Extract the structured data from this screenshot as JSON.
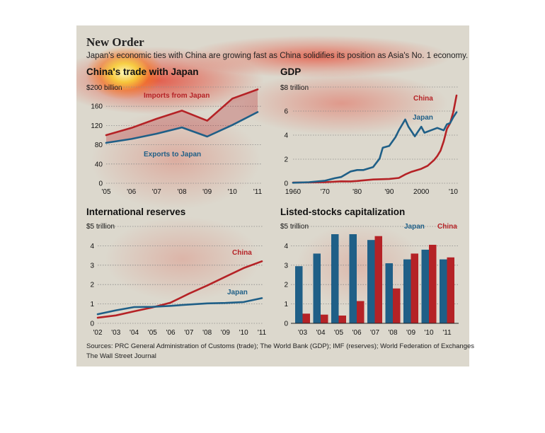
{
  "headline": "New Order",
  "dek": "Japan's economic ties with China are growing fast as China solidifies its position as Asia's No. 1 economy.",
  "sources": "Sources: PRC General Administration of Customs (trade); The World Bank (GDP); IMF (reserves); World Federation of Exchanges",
  "credit": "The Wall Street Journal",
  "colors": {
    "china": "#b52226",
    "japan": "#1f5f87",
    "background": "#dcd8cd",
    "grid": "#8a8a8a"
  },
  "chart_data": [
    {
      "type": "line",
      "title": "China's trade with Japan",
      "unit_label": "$200 billion",
      "x": [
        2005,
        2006,
        2007,
        2008,
        2009,
        2010,
        2011
      ],
      "x_tick_labels": [
        "'05",
        "'06",
        "'07",
        "'08",
        "'09",
        "'10",
        "'11"
      ],
      "y_ticks": [
        0,
        40,
        80,
        120,
        160,
        200
      ],
      "y_tick_labels": [
        "0",
        "40",
        "80",
        "120",
        "160",
        ""
      ],
      "ylim": [
        0,
        200
      ],
      "area_between": true,
      "series": [
        {
          "name": "Imports from Japan",
          "key": "china",
          "values": [
            100,
            115,
            134,
            151,
            130,
            176,
            195
          ]
        },
        {
          "name": "Exports to Japan",
          "key": "japan",
          "values": [
            84,
            92,
            103,
            116,
            97,
            121,
            148
          ]
        }
      ]
    },
    {
      "type": "line",
      "title": "GDP",
      "unit_label": "$8 trillion",
      "xlim": [
        1960,
        2011
      ],
      "x_ticks": [
        1960,
        1970,
        1980,
        1990,
        2000,
        2010
      ],
      "x_tick_labels": [
        "1960",
        "'70",
        "'80",
        "'90",
        "2000",
        "'10"
      ],
      "y_ticks": [
        0,
        2,
        4,
        6,
        8
      ],
      "y_tick_labels": [
        "0",
        "2",
        "4",
        "6",
        ""
      ],
      "ylim": [
        0,
        8
      ],
      "series": [
        {
          "name": "China",
          "key": "china",
          "x": [
            1960,
            1965,
            1970,
            1975,
            1978,
            1980,
            1985,
            1990,
            1993,
            1995,
            1997,
            2000,
            2002,
            2004,
            2005,
            2006,
            2007,
            2008,
            2009,
            2010,
            2011
          ],
          "values": [
            0.06,
            0.07,
            0.09,
            0.16,
            0.15,
            0.19,
            0.31,
            0.36,
            0.44,
            0.73,
            0.96,
            1.2,
            1.45,
            1.93,
            2.26,
            2.71,
            3.49,
            4.52,
            4.99,
            5.93,
            7.3
          ]
        },
        {
          "name": "Japan",
          "key": "japan",
          "x": [
            1960,
            1965,
            1970,
            1973,
            1975,
            1978,
            1980,
            1982,
            1985,
            1987,
            1988,
            1990,
            1992,
            1993,
            1995,
            1996,
            1998,
            2000,
            2001,
            2003,
            2005,
            2007,
            2008,
            2009,
            2010,
            2011
          ],
          "values": [
            0.04,
            0.09,
            0.21,
            0.42,
            0.52,
            0.98,
            1.1,
            1.1,
            1.35,
            2.05,
            2.96,
            3.1,
            3.85,
            4.4,
            5.3,
            4.7,
            3.9,
            4.7,
            4.2,
            4.4,
            4.6,
            4.4,
            4.9,
            5.0,
            5.5,
            5.9
          ]
        }
      ]
    },
    {
      "type": "line",
      "title": "International reserves",
      "unit_label": "$5 trillion",
      "x": [
        2002,
        2003,
        2004,
        2005,
        2006,
        2007,
        2008,
        2009,
        2010,
        2011
      ],
      "x_tick_labels": [
        "'02",
        "'03",
        "'04",
        "'05",
        "'06",
        "'07",
        "'08",
        "'09",
        "'10",
        "'11"
      ],
      "y_ticks": [
        0,
        1,
        2,
        3,
        4,
        5
      ],
      "y_tick_labels": [
        "0",
        "1",
        "2",
        "3",
        "4",
        ""
      ],
      "ylim": [
        0,
        5
      ],
      "series": [
        {
          "name": "China",
          "key": "china",
          "values": [
            0.29,
            0.41,
            0.62,
            0.82,
            1.07,
            1.53,
            1.95,
            2.4,
            2.85,
            3.2
          ]
        },
        {
          "name": "Japan",
          "key": "japan",
          "values": [
            0.47,
            0.67,
            0.84,
            0.85,
            0.9,
            0.97,
            1.03,
            1.05,
            1.1,
            1.3
          ]
        }
      ]
    },
    {
      "type": "bar",
      "title": "Listed-stocks capitalization",
      "unit_label": "$5 trillion",
      "categories": [
        "'03",
        "'04",
        "'05",
        "'06",
        "'07",
        "'08",
        "'09",
        "'10",
        "'11"
      ],
      "y_ticks": [
        0,
        1,
        2,
        3,
        4,
        5
      ],
      "y_tick_labels": [
        "0",
        "1",
        "2",
        "3",
        "4",
        ""
      ],
      "ylim": [
        0,
        5
      ],
      "legend": "top-right",
      "series": [
        {
          "name": "Japan",
          "key": "japan",
          "values": [
            2.95,
            3.6,
            4.6,
            4.6,
            4.3,
            3.1,
            3.3,
            3.8,
            3.3
          ]
        },
        {
          "name": "China",
          "key": "china",
          "values": [
            0.5,
            0.45,
            0.4,
            1.15,
            4.5,
            1.8,
            3.6,
            4.05,
            3.4
          ]
        }
      ]
    }
  ]
}
